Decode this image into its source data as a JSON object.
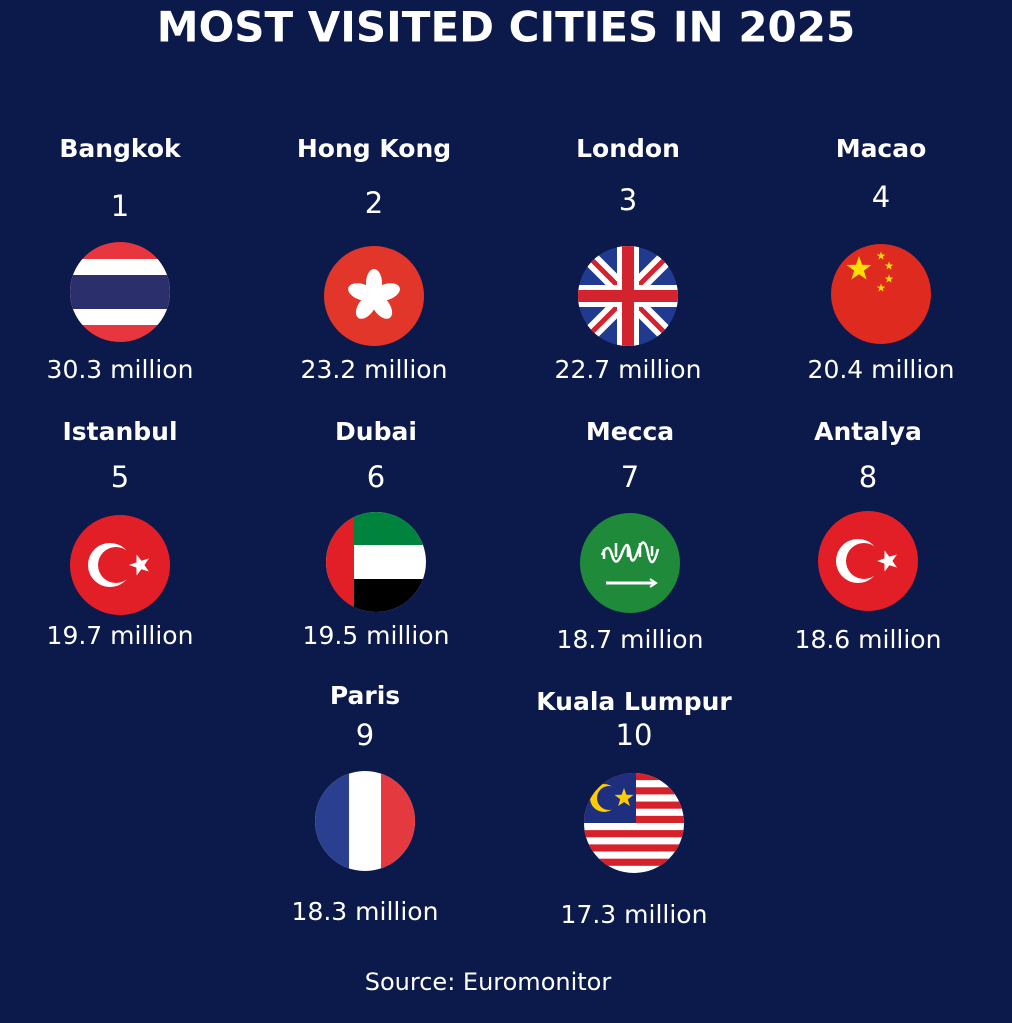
{
  "title": "MOST VISITED CITIES IN 2025",
  "cities": [
    {
      "name": "Bangkok",
      "rank": 1,
      "visitors": "30.3 million"
    },
    {
      "name": "Hong Kong",
      "rank": 2,
      "visitors": "23.2 million"
    },
    {
      "name": "London",
      "rank": 3,
      "visitors": "22.7 million"
    },
    {
      "name": "Macao",
      "rank": 4,
      "visitors": "20.4 million"
    },
    {
      "name": "Istanbul",
      "rank": 5,
      "visitors": "19.7 million"
    },
    {
      "name": "Dubai",
      "rank": 6,
      "visitors": "19.5 million"
    },
    {
      "name": "Mecca",
      "rank": 7,
      "visitors": "18.7 million"
    },
    {
      "name": "Antalya",
      "rank": 8,
      "visitors": "18.6 million"
    },
    {
      "name": "Paris",
      "rank": 9,
      "visitors": "18.3 million"
    },
    {
      "name": "Kuala Lumpur",
      "rank": 10,
      "visitors": "17.3 million"
    }
  ],
  "source": "Source: Euromonitor"
}
